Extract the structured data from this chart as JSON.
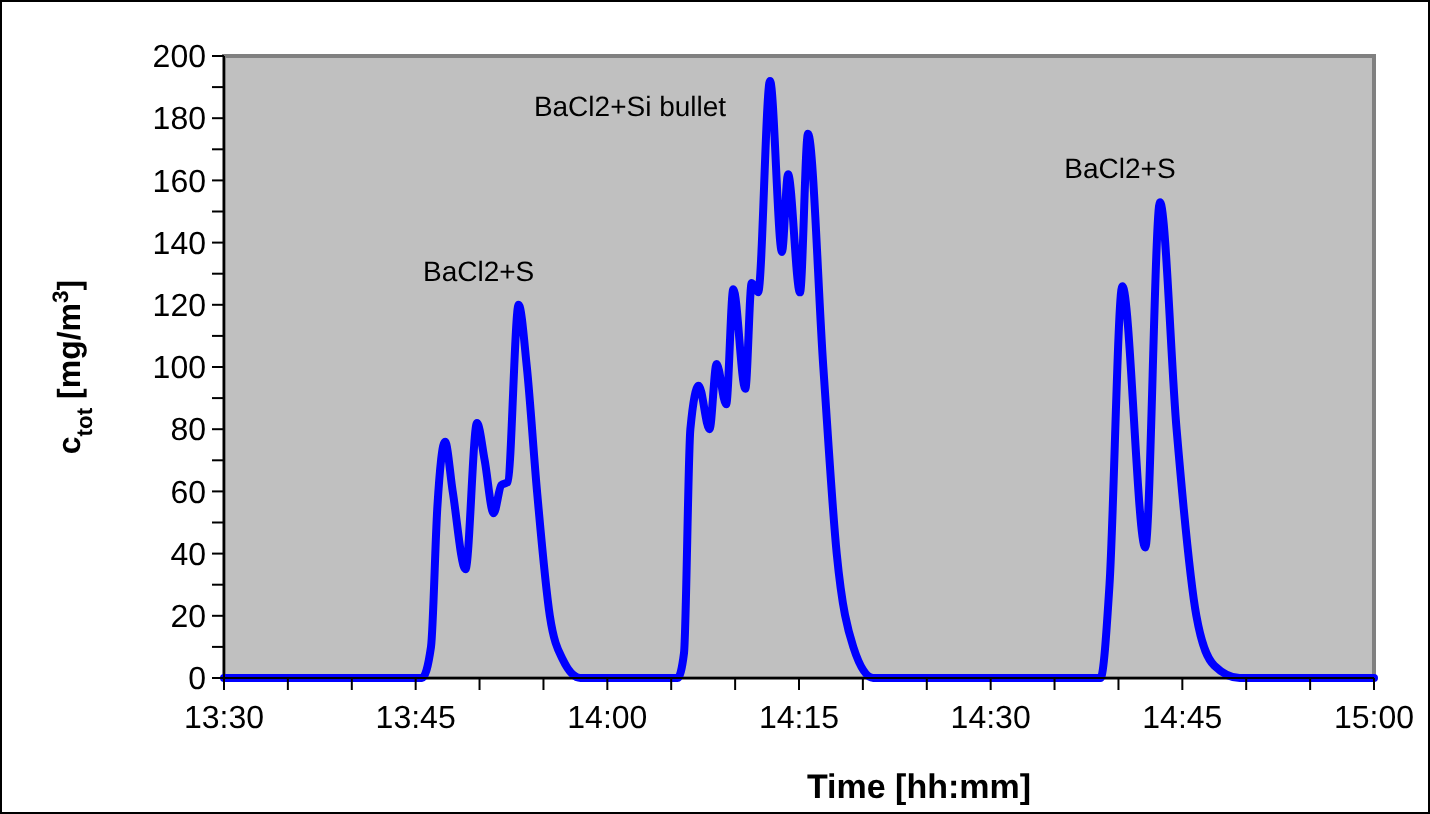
{
  "chart_data": {
    "type": "line",
    "xlabel": "Time [hh:mm]",
    "ylabel": "c$_{tot}$ [mg/m$^{3}$]",
    "xlim": [
      13.5,
      15.0
    ],
    "xticks": [
      {
        "value": 13.5,
        "label": "13:30"
      },
      {
        "value": 13.5833,
        "label": null
      },
      {
        "value": 13.6667,
        "label": null
      },
      {
        "value": 13.75,
        "label": "13:45"
      },
      {
        "value": 13.8333,
        "label": null
      },
      {
        "value": 13.9167,
        "label": null
      },
      {
        "value": 14.0,
        "label": "14:00"
      },
      {
        "value": 14.0833,
        "label": null
      },
      {
        "value": 14.1667,
        "label": null
      },
      {
        "value": 14.25,
        "label": "14:15"
      },
      {
        "value": 14.3333,
        "label": null
      },
      {
        "value": 14.4167,
        "label": null
      },
      {
        "value": 14.5,
        "label": "14:30"
      },
      {
        "value": 14.5833,
        "label": null
      },
      {
        "value": 14.6667,
        "label": null
      },
      {
        "value": 14.75,
        "label": "14:45"
      },
      {
        "value": 14.8333,
        "label": null
      },
      {
        "value": 14.9167,
        "label": null
      },
      {
        "value": 15.0,
        "label": "15:00"
      }
    ],
    "ylim": [
      0,
      200
    ],
    "yticks": [
      0,
      {
        "value": 10,
        "label": null
      },
      20,
      {
        "value": 30,
        "label": null
      },
      40,
      {
        "value": 50,
        "label": null
      },
      60,
      {
        "value": 70,
        "label": null
      },
      80,
      {
        "value": 90,
        "label": null
      },
      100,
      {
        "value": 110,
        "label": null
      },
      120,
      {
        "value": 130,
        "label": null
      },
      140,
      {
        "value": 150,
        "label": null
      },
      160,
      {
        "value": 170,
        "label": null
      },
      180,
      {
        "value": 190,
        "label": null
      },
      200
    ],
    "grid": false,
    "marker": "none",
    "line_style": "solid",
    "annotations": [
      {
        "text": "BaCl2+S",
        "x": 13.8843,
        "y": 120
      },
      {
        "text": "BaCl2+Si bullet",
        "x": 14.2122,
        "y": 192
      },
      {
        "text": "BaCl2+S",
        "x": 14.7208,
        "y": 153
      }
    ],
    "series": [
      {
        "color": "#0000ff",
        "x": [
          13.5,
          13.7583,
          13.77,
          13.7783,
          13.7883,
          13.7983,
          13.815,
          13.83,
          13.84,
          13.8517,
          13.8617,
          13.87,
          13.8843,
          13.895,
          13.9083,
          13.925,
          13.9417,
          13.965,
          14.0917,
          14.1,
          14.1083,
          14.1192,
          14.1333,
          14.1425,
          14.155,
          14.1643,
          14.18,
          14.1883,
          14.1967,
          14.2122,
          14.2278,
          14.2357,
          14.2513,
          14.2617,
          14.2817,
          14.2992,
          14.3208,
          14.3467,
          14.6433,
          14.655,
          14.6717,
          14.7017,
          14.7208,
          14.7425,
          14.7683,
          14.7917,
          14.825,
          15.0
        ],
        "values": [
          0,
          0,
          10,
          55,
          76,
          60,
          35,
          82,
          70,
          53,
          62,
          63,
          120,
          100,
          60,
          20,
          6,
          0,
          0,
          8,
          80,
          94,
          80,
          101,
          88,
          125,
          93,
          127,
          124,
          192,
          137,
          162,
          124,
          175,
          100,
          40,
          10,
          0,
          0,
          30,
          126,
          42,
          153,
          80,
          20,
          4,
          0,
          0
        ]
      }
    ]
  }
}
